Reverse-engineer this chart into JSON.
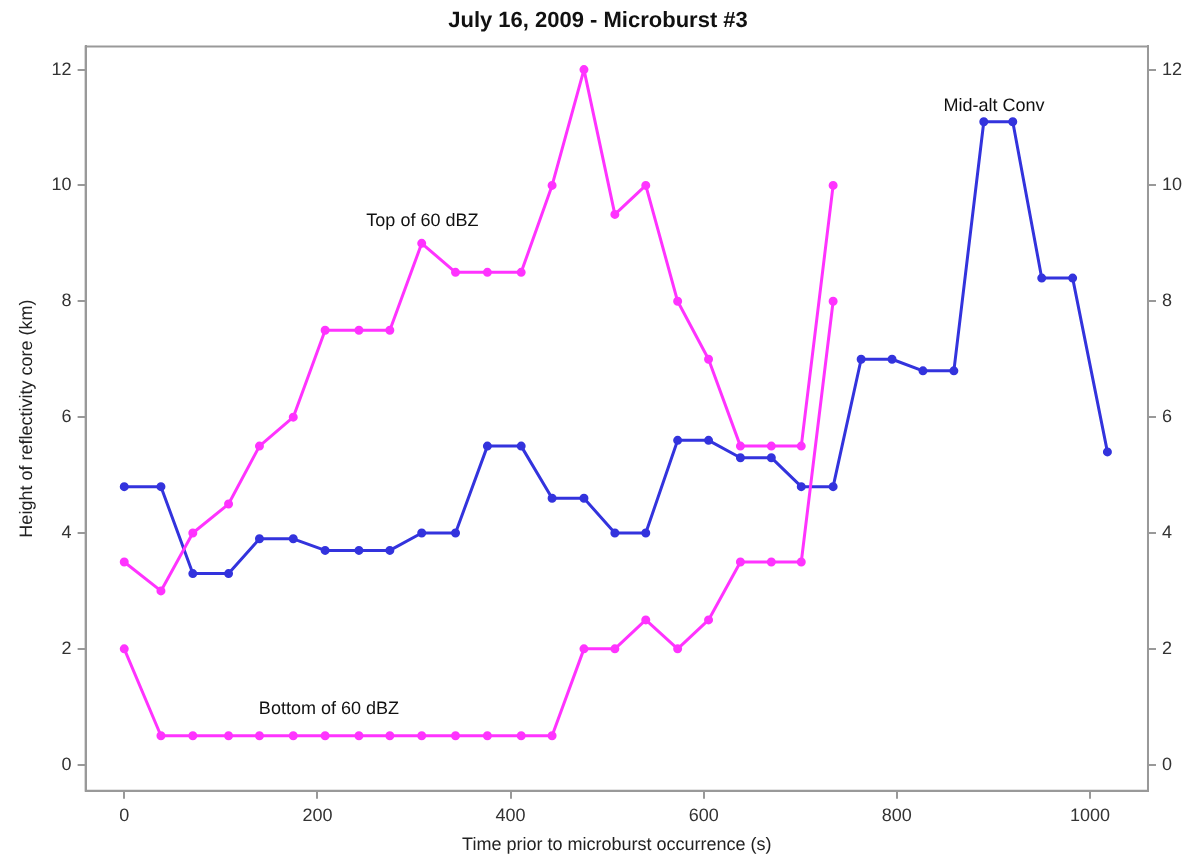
{
  "chart_data": {
    "type": "line",
    "title": "July 16, 2009 - Microburst #3",
    "xlabel": "Time prior to microburst occurrence (s)",
    "ylabel": "Height of reflectivity core (km)",
    "xlim": [
      -40,
      1060
    ],
    "xticks": [
      0,
      200,
      400,
      600,
      800,
      1000
    ],
    "ylim": [
      -0.45,
      12.4
    ],
    "yticks": [
      0,
      2,
      4,
      6,
      8,
      10,
      12
    ],
    "y2lim": [
      -0.45,
      12.4
    ],
    "y2ticks": [
      0,
      2,
      4,
      6,
      8,
      10,
      12
    ],
    "grid": false,
    "legend": false,
    "marker": "circle",
    "line_style": "solid",
    "series": [
      {
        "color": "#ff33ff",
        "x": [
          0,
          38,
          71,
          108,
          140,
          175,
          208,
          243,
          275,
          308,
          343,
          376,
          411,
          443,
          476,
          508,
          540,
          573,
          605,
          638,
          670,
          701,
          734
        ],
        "values": [
          3.5,
          3.0,
          4.0,
          4.5,
          5.5,
          6.0,
          7.5,
          7.5,
          7.5,
          9.0,
          8.5,
          8.5,
          8.5,
          10.0,
          12.0,
          9.5,
          10.0,
          8.0,
          7.0,
          5.5,
          5.5,
          5.5,
          10.0
        ]
      },
      {
        "color": "#ff33ff",
        "x": [
          0,
          38,
          71,
          108,
          140,
          175,
          208,
          243,
          275,
          308,
          343,
          376,
          411,
          443,
          476,
          508,
          540,
          573,
          605,
          638,
          670,
          701,
          734
        ],
        "values": [
          2.0,
          0.5,
          0.5,
          0.5,
          0.5,
          0.5,
          0.5,
          0.5,
          0.5,
          0.5,
          0.5,
          0.5,
          0.5,
          0.5,
          2.0,
          2.0,
          2.5,
          2.0,
          2.5,
          3.5,
          3.5,
          3.5,
          8.0
        ]
      },
      {
        "color": "#3333dd",
        "x": [
          0,
          38,
          71,
          108,
          140,
          175,
          208,
          243,
          275,
          308,
          343,
          376,
          411,
          443,
          476,
          508,
          540,
          573,
          605,
          638,
          670,
          701,
          734,
          763,
          795,
          827,
          859,
          890,
          920,
          950,
          982,
          1018
        ],
        "values": [
          4.8,
          4.8,
          3.3,
          3.3,
          3.9,
          3.9,
          3.7,
          3.7,
          3.7,
          4.0,
          4.0,
          5.5,
          5.5,
          4.6,
          4.6,
          4.0,
          4.0,
          5.6,
          5.6,
          5.3,
          5.3,
          4.8,
          4.8,
          7.0,
          7.0,
          6.8,
          6.8,
          11.1,
          11.1,
          8.4,
          8.4,
          5.4
        ]
      }
    ],
    "annotations": [
      "Top of 60 dBZ",
      "Bottom of 60 dBZ",
      "Mid-alt Conv"
    ]
  }
}
